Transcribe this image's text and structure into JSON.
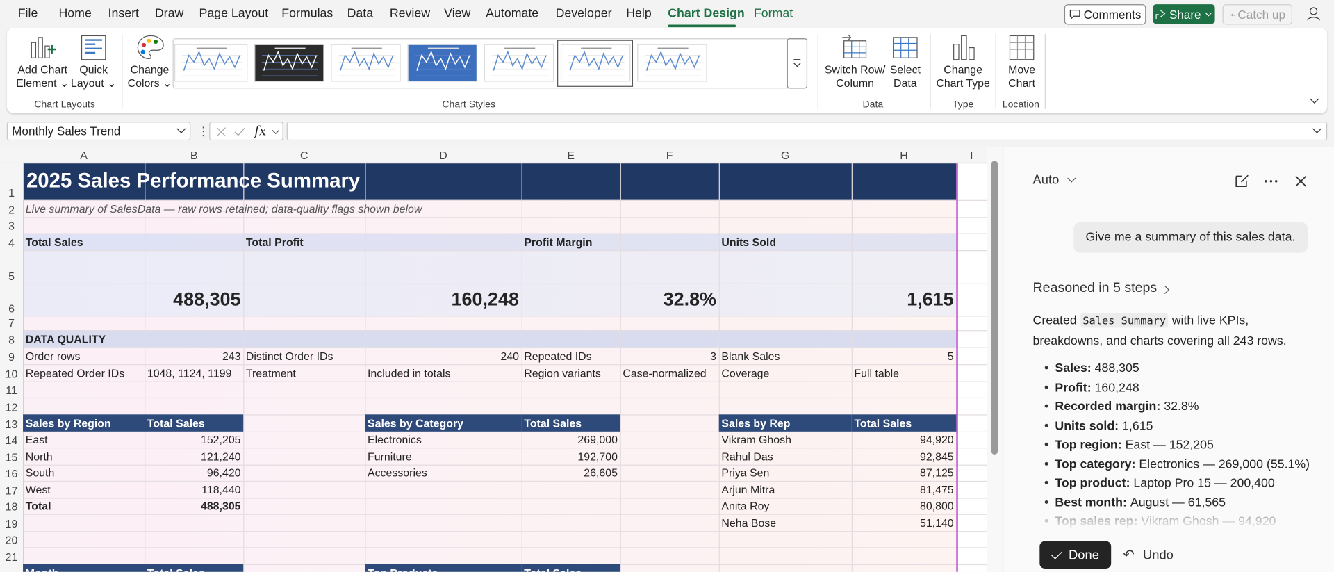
{
  "ribbon": {
    "tabs": [
      "File",
      "Home",
      "Insert",
      "Draw",
      "Page Layout",
      "Formulas",
      "Data",
      "Review",
      "View",
      "Automate",
      "Developer",
      "Help",
      "Chart Design",
      "Format"
    ],
    "comments": "Comments",
    "share": "Share",
    "catch_up": "Catch up",
    "buttons": {
      "add_chart_element": "Add Chart Element",
      "quick_layout": "Quick Layout",
      "change_colors": "Change Colors",
      "switch_row_column": "Switch Row/ Column",
      "select_data": "Select Data",
      "change_chart_type": "Change Chart Type",
      "move_chart": "Move Chart"
    },
    "groups": {
      "chart_layouts": "Chart Layouts",
      "chart_styles": "Chart Styles",
      "data": "Data",
      "type": "Type",
      "location": "Location"
    }
  },
  "formula_bar": {
    "name_box": "Monthly Sales Trend",
    "fx": "fx"
  },
  "sheet": {
    "columns": [
      "A",
      "B",
      "C",
      "D",
      "E",
      "F",
      "G",
      "H",
      "I"
    ],
    "rows": [
      1,
      2,
      3,
      4,
      5,
      6,
      7,
      8,
      9,
      10,
      11,
      12,
      13,
      14,
      15,
      16,
      17,
      18,
      19,
      20,
      21
    ],
    "title": "2025 Sales Performance Summary",
    "subtitle": "Live summary of SalesData — raw rows retained; data-quality flags shown below",
    "kpis": [
      {
        "label": "Total Sales",
        "value": "488,305"
      },
      {
        "label": "Total Profit",
        "value": "160,248"
      },
      {
        "label": "Profit Margin",
        "value": "32.8%"
      },
      {
        "label": "Units Sold",
        "value": "1,615"
      }
    ],
    "data_quality": {
      "heading": "DATA QUALITY",
      "rows": [
        [
          "Order rows",
          "243",
          "Distinct Order IDs",
          "240",
          "Repeated IDs",
          "3",
          "Blank Sales",
          "5"
        ],
        [
          "Repeated Order IDs",
          "1048, 1124, 1199",
          "Treatment",
          "Included in totals",
          "Region variants",
          "Case-normalized",
          "Coverage",
          "Full table"
        ]
      ]
    },
    "region_table": {
      "headers": [
        "Sales by Region",
        "Total Sales"
      ],
      "rows": [
        [
          "East",
          "152,205"
        ],
        [
          "North",
          "121,240"
        ],
        [
          "South",
          "96,420"
        ],
        [
          "West",
          "118,440"
        ],
        [
          "Total",
          "488,305"
        ]
      ]
    },
    "category_table": {
      "headers": [
        "Sales by Category",
        "Total Sales"
      ],
      "rows": [
        [
          "Electronics",
          "269,000"
        ],
        [
          "Furniture",
          "192,700"
        ],
        [
          "Accessories",
          "26,605"
        ]
      ]
    },
    "rep_table": {
      "headers": [
        "Sales by Rep",
        "Total Sales"
      ],
      "rows": [
        [
          "Vikram Ghosh",
          "94,920"
        ],
        [
          "Rahul Das",
          "92,845"
        ],
        [
          "Priya Sen",
          "87,125"
        ],
        [
          "Arjun Mitra",
          "81,475"
        ],
        [
          "Anita Roy",
          "80,800"
        ],
        [
          "Neha Bose",
          "51,140"
        ]
      ]
    },
    "month_table": {
      "headers": [
        "Month",
        "Total Sales"
      ]
    },
    "products_table": {
      "headers": [
        "Top Products",
        "Total Sales"
      ]
    }
  },
  "assistant_panel": {
    "mode": "Auto",
    "user_message": "Give me a summary of this sales data.",
    "reasoning": "Reasoned in 5 steps",
    "intro_before": "Created",
    "intro_code": "Sales Summary",
    "intro_after": "with live KPIs, breakdowns, and charts covering all 243 rows.",
    "bullets": [
      {
        "label": "Sales:",
        "value": "488,305"
      },
      {
        "label": "Profit:",
        "value": "160,248"
      },
      {
        "label": "Recorded margin:",
        "value": "32.8%"
      },
      {
        "label": "Units sold:",
        "value": "1,615"
      },
      {
        "label": "Top region:",
        "value": "East — 152,205"
      },
      {
        "label": "Top category:",
        "value": "Electronics — 269,000 (55.1%)"
      },
      {
        "label": "Top product:",
        "value": "Laptop Pro 15 — 200,400"
      },
      {
        "label": "Best month:",
        "value": "August — 61,565"
      },
      {
        "label": "Top sales rep:",
        "value": "Vikram Ghosh — 94,920"
      }
    ],
    "done": "Done",
    "undo": "Undo"
  }
}
